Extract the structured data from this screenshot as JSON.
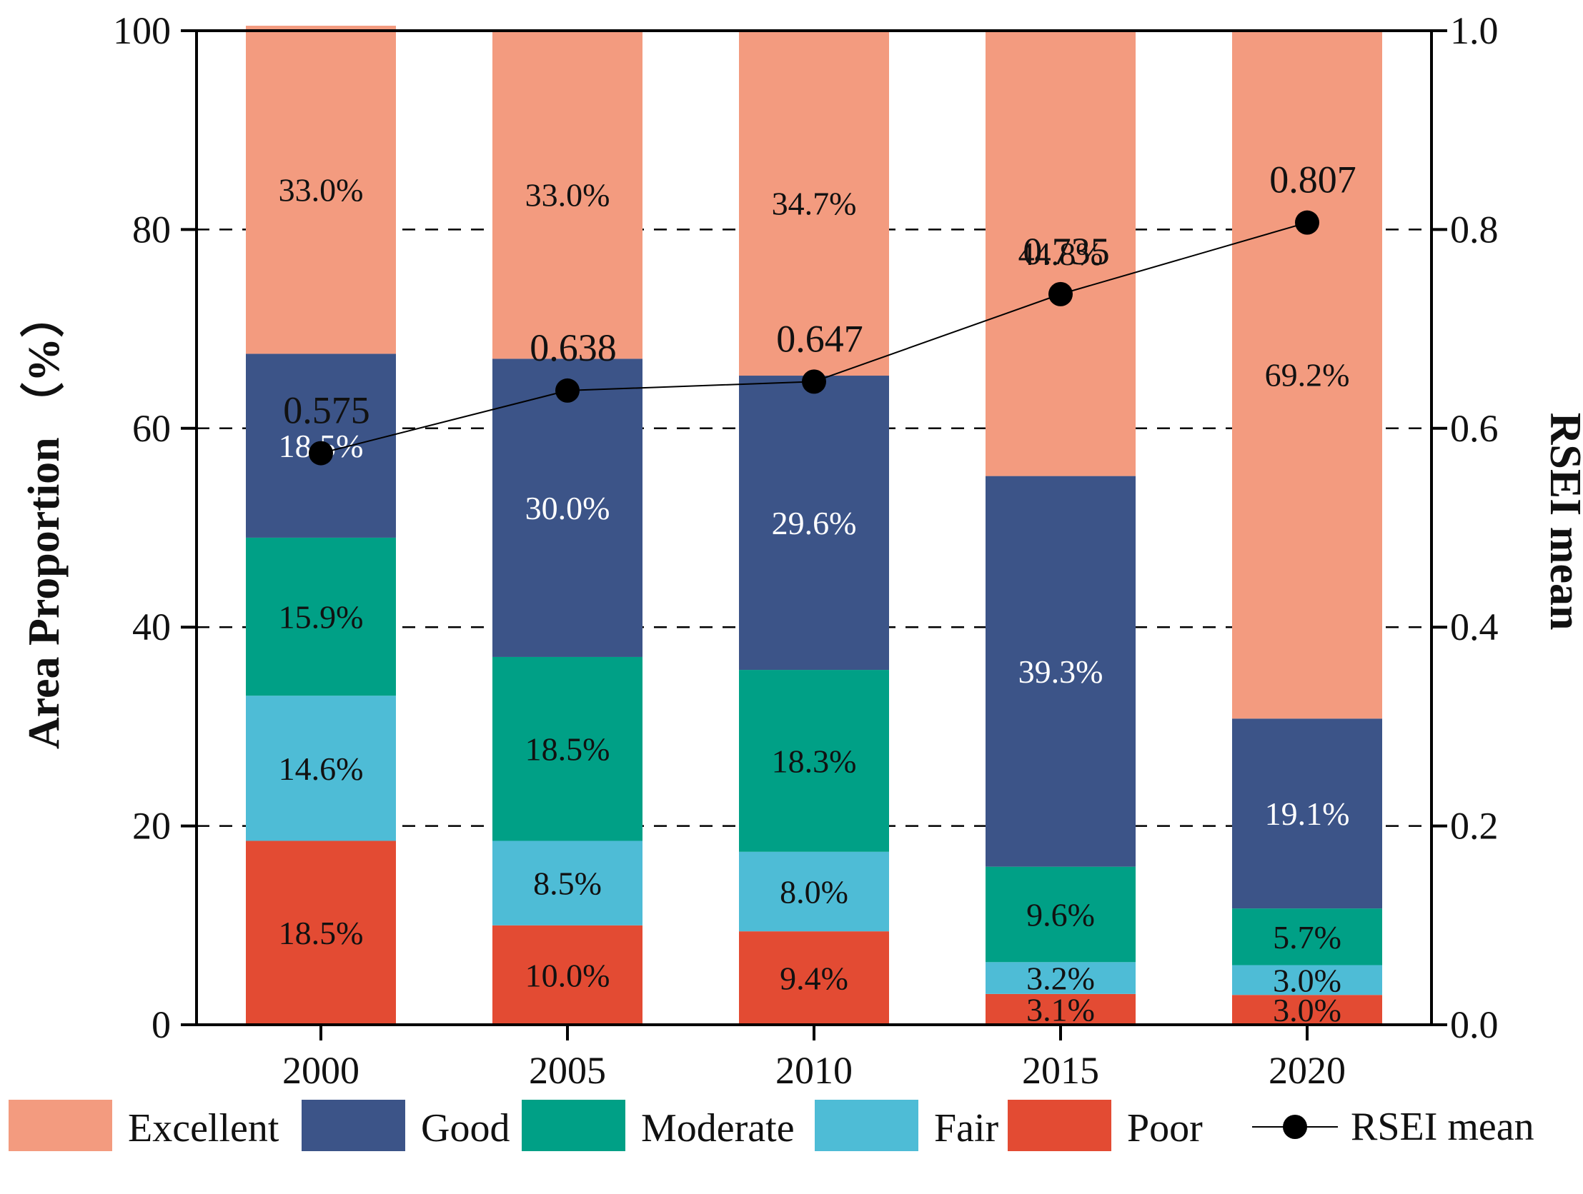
{
  "chart_data": {
    "type": "bar",
    "stacked": true,
    "categories": [
      "2000",
      "2005",
      "2010",
      "2015",
      "2020"
    ],
    "series": [
      {
        "name": "Poor",
        "color": "#E34B33",
        "values": [
          18.5,
          10.0,
          9.4,
          3.1,
          3.0
        ],
        "labels": [
          "18.5%",
          "10.0%",
          "9.4%",
          "3.1%",
          "3.0%"
        ],
        "label_color": "#111111"
      },
      {
        "name": "Fair",
        "color": "#4EBCD6",
        "values": [
          14.6,
          8.5,
          8.0,
          3.2,
          3.0
        ],
        "labels": [
          "14.6%",
          "8.5%",
          "8.0%",
          "3.2%",
          "3.0%"
        ],
        "label_color": "#111111"
      },
      {
        "name": "Moderate",
        "color": "#00A086",
        "values": [
          15.9,
          18.5,
          18.3,
          9.6,
          5.7
        ],
        "labels": [
          "15.9%",
          "18.5%",
          "18.3%",
          "9.6%",
          "5.7%"
        ],
        "label_color": "#111111"
      },
      {
        "name": "Good",
        "color": "#3C5488",
        "values": [
          18.5,
          30.0,
          29.6,
          39.3,
          19.1
        ],
        "labels": [
          "18.5%",
          "30.0%",
          "29.6%",
          "39.3%",
          "19.1%"
        ],
        "label_color": "#FFFFFF"
      },
      {
        "name": "Excellent",
        "color": "#F39B7F",
        "values": [
          33.0,
          33.0,
          34.7,
          44.8,
          69.2
        ],
        "labels": [
          "33.0%",
          "33.0%",
          "34.7%",
          "44.8%",
          "69.2%"
        ],
        "label_color": "#111111"
      }
    ],
    "line_series": {
      "name": "RSEI mean",
      "color": "#000000",
      "values": [
        0.575,
        0.638,
        0.647,
        0.735,
        0.807
      ],
      "labels": [
        "0.575",
        "0.638",
        "0.647",
        "0.735",
        "0.807"
      ]
    },
    "ylabel": "Area Proportion （%）",
    "y2label": "RSEI mean",
    "ylim": [
      0,
      100
    ],
    "y2lim": [
      0.0,
      1.0
    ],
    "yticks": [
      "0",
      "20",
      "40",
      "60",
      "80",
      "100"
    ],
    "y2ticks": [
      "0.0",
      "0.2",
      "0.4",
      "0.6",
      "0.8",
      "1.0"
    ],
    "grid": "dashed horizontal",
    "legend": {
      "placement": "bottom",
      "items": [
        "Excellent",
        "Good",
        "Moderate",
        "Fair",
        "Poor",
        "RSEI mean"
      ]
    }
  }
}
